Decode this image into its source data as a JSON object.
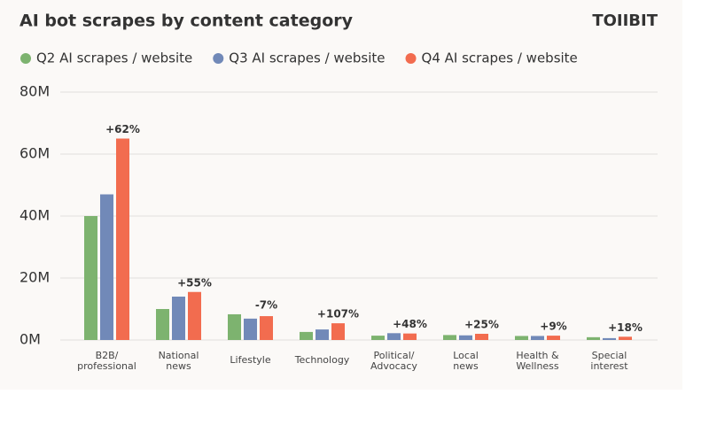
{
  "chart_data": {
    "type": "bar",
    "title": "AI bot scrapes by content category",
    "logo": "TOIIBIT",
    "categories": [
      "B2B/\nprofessional",
      "National\nnews",
      "Lifestyle",
      "Technology",
      "Political/\nAdvocacy",
      "Local\nnews",
      "Health &\nWellness",
      "Special\ninterest"
    ],
    "series": [
      {
        "name": "Q2 AI scrapes / website",
        "color": "#7db36f",
        "values": [
          40,
          10,
          8.3,
          2.6,
          1.4,
          1.6,
          1.3,
          0.9
        ]
      },
      {
        "name": "Q3 AI scrapes / website",
        "color": "#7189b8",
        "values": [
          47,
          14,
          6.9,
          3.4,
          2.2,
          1.5,
          1.3,
          0.6
        ]
      },
      {
        "name": "Q4 AI scrapes / website",
        "color": "#f26c4f",
        "values": [
          65,
          15.5,
          7.7,
          5.4,
          2.1,
          2.0,
          1.4,
          1.05
        ]
      }
    ],
    "annotations": [
      "+62%",
      "+55%",
      "-7%",
      "+107%",
      "+48%",
      "+25%",
      "+9%",
      "+18%"
    ],
    "annotation_color": "#f26c4f",
    "ylim": [
      0,
      80
    ],
    "yticks": [
      {
        "value": 0,
        "label": "0M"
      },
      {
        "value": 20,
        "label": "20M"
      },
      {
        "value": 40,
        "label": "40M"
      },
      {
        "value": 60,
        "label": "60M"
      },
      {
        "value": 80,
        "label": "80M"
      }
    ],
    "grid": true
  }
}
